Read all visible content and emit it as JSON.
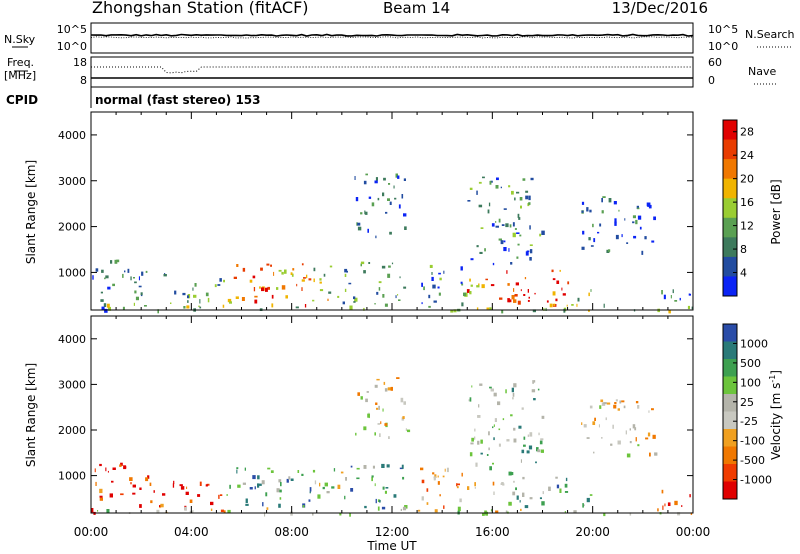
{
  "header": {
    "station": "Zhongshan Station (fitACF)",
    "beam": "Beam 14",
    "date": "13/Dec/2016"
  },
  "panels": {
    "nsky": {
      "left_label": "N.Sky",
      "ticks_left": [
        "10^5",
        "10^0"
      ],
      "ticks_right": [
        "10^5",
        "10^0"
      ],
      "right_label": "N.Search"
    },
    "freq": {
      "left_label": "Freq.",
      "units": "[MHz]",
      "ticks_left": [
        "18",
        "8"
      ],
      "ticks_right": [
        "60",
        "0"
      ],
      "right_label": "Nave"
    },
    "cpid": {
      "left_label": "CPID",
      "text": "normal (fast stereo) 153"
    }
  },
  "colors": {
    "power": [
      "#0b24f5",
      "#224ca0",
      "#3d7a5c",
      "#5aa052",
      "#9acd32",
      "#f0b400",
      "#f07800",
      "#e83c00",
      "#e00000"
    ],
    "velocity": [
      "#e00000",
      "#f03c00",
      "#f07800",
      "#f0a020",
      "#c8c8c0",
      "#b4b4aa",
      "#6cc43c",
      "#3da050",
      "#2a7a78",
      "#2a4ca8"
    ]
  },
  "chart_data": [
    {
      "type": "heatmap",
      "title": "",
      "xlabel": "Time UT",
      "ylabel": "Slant Range [km]",
      "xlim": [
        "00:00",
        "00:00"
      ],
      "ylim": [
        180,
        4500
      ],
      "x_ticks": [
        "00:00",
        "04:00",
        "08:00",
        "12:00",
        "16:00",
        "20:00",
        "00:00"
      ],
      "y_ticks": [
        1000,
        2000,
        3000,
        4000
      ],
      "colorbar": {
        "label": "Power [dB]",
        "ticks": [
          4,
          8,
          12,
          16,
          20,
          24,
          28
        ],
        "range": [
          0,
          30
        ]
      },
      "regions": [
        {
          "t0": 0.0,
          "t1": 1.6,
          "r0": 200,
          "r1": 1300,
          "level": 0.25
        },
        {
          "t0": 1.6,
          "t1": 3.0,
          "r0": 300,
          "r1": 1150,
          "level": 0.3
        },
        {
          "t0": 3.0,
          "t1": 5.2,
          "r0": 250,
          "r1": 900,
          "level": 0.3
        },
        {
          "t0": 5.2,
          "t1": 8.8,
          "r0": 300,
          "r1": 1200,
          "level": 0.7
        },
        {
          "t0": 6.2,
          "t1": 7.6,
          "r0": 400,
          "r1": 700,
          "level": 0.95
        },
        {
          "t0": 8.8,
          "t1": 10.0,
          "r0": 400,
          "r1": 1200,
          "level": 0.5
        },
        {
          "t0": 10.0,
          "t1": 12.5,
          "r0": 300,
          "r1": 1300,
          "level": 0.35
        },
        {
          "t0": 10.5,
          "t1": 12.6,
          "r0": 1800,
          "r1": 3200,
          "level": 0.2
        },
        {
          "t0": 13.0,
          "t1": 15.0,
          "r0": 300,
          "r1": 1200,
          "level": 0.25
        },
        {
          "t0": 14.5,
          "t1": 16.5,
          "r0": 450,
          "r1": 900,
          "level": 0.75
        },
        {
          "t0": 15.0,
          "t1": 18.0,
          "r0": 1200,
          "r1": 3100,
          "level": 0.3
        },
        {
          "t0": 16.5,
          "t1": 19.0,
          "r0": 300,
          "r1": 1100,
          "level": 0.85
        },
        {
          "t0": 16.7,
          "t1": 18.3,
          "r0": 300,
          "r1": 650,
          "level": 1.0
        },
        {
          "t0": 19.0,
          "t1": 20.0,
          "r0": 300,
          "r1": 700,
          "level": 0.4
        },
        {
          "t0": 19.5,
          "t1": 22.5,
          "r0": 1450,
          "r1": 2700,
          "level": 0.2
        },
        {
          "t0": 22.5,
          "t1": 24.0,
          "r0": 250,
          "r1": 700,
          "level": 0.2
        },
        {
          "t0": 0.0,
          "t1": 24.0,
          "r0": 180,
          "r1": 320,
          "level": 0.45
        }
      ]
    },
    {
      "type": "heatmap",
      "title": "",
      "xlabel": "Time UT",
      "ylabel": "Slant Range [km]",
      "xlim": [
        "00:00",
        "00:00"
      ],
      "ylim": [
        180,
        4500
      ],
      "x_ticks": [
        "00:00",
        "04:00",
        "08:00",
        "12:00",
        "16:00",
        "20:00",
        "00:00"
      ],
      "y_ticks": [
        1000,
        2000,
        3000,
        4000
      ],
      "colorbar": {
        "label": "Velocity [m s^-1]",
        "ticks": [
          "1000",
          "500",
          "100",
          "25",
          "-25",
          "-100",
          "-500",
          "-1000"
        ]
      },
      "regions": [
        {
          "t0": 0.0,
          "t1": 1.6,
          "r0": 200,
          "r1": 1300,
          "level": 0.1
        },
        {
          "t0": 1.6,
          "t1": 3.0,
          "r0": 300,
          "r1": 1150,
          "level": 0.1
        },
        {
          "t0": 3.0,
          "t1": 5.2,
          "r0": 250,
          "r1": 900,
          "level": 0.05
        },
        {
          "t0": 5.2,
          "t1": 8.8,
          "r0": 300,
          "r1": 1200,
          "level": 0.75
        },
        {
          "t0": 8.8,
          "t1": 10.0,
          "r0": 400,
          "r1": 1200,
          "level": 0.55
        },
        {
          "t0": 10.0,
          "t1": 12.5,
          "r0": 300,
          "r1": 1300,
          "level": 0.75
        },
        {
          "t0": 10.5,
          "t1": 12.6,
          "r0": 1800,
          "r1": 3200,
          "level": 0.45
        },
        {
          "t0": 13.0,
          "t1": 15.0,
          "r0": 300,
          "r1": 1200,
          "level": 0.3
        },
        {
          "t0": 14.5,
          "t1": 16.5,
          "r0": 450,
          "r1": 900,
          "level": 0.35
        },
        {
          "t0": 15.0,
          "t1": 18.0,
          "r0": 1200,
          "r1": 3100,
          "level": 0.65
        },
        {
          "t0": 16.5,
          "t1": 19.0,
          "r0": 300,
          "r1": 1100,
          "level": 0.7
        },
        {
          "t0": 19.0,
          "t1": 20.0,
          "r0": 300,
          "r1": 700,
          "level": 0.6
        },
        {
          "t0": 19.5,
          "t1": 22.5,
          "r0": 1450,
          "r1": 2700,
          "level": 0.45
        },
        {
          "t0": 22.5,
          "t1": 24.0,
          "r0": 250,
          "r1": 700,
          "level": 0.05
        },
        {
          "t0": 0.0,
          "t1": 24.0,
          "r0": 180,
          "r1": 320,
          "level": 0.5
        }
      ]
    }
  ]
}
